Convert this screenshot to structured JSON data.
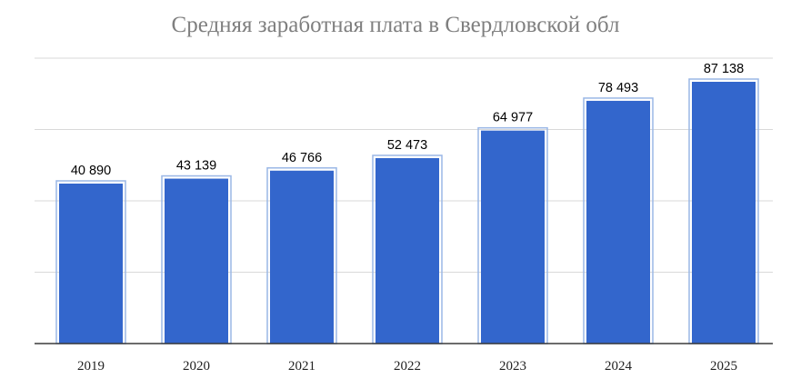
{
  "chart_data": {
    "type": "bar",
    "title": "Средняя заработная плата в Свердловской обл",
    "categories": [
      "2019",
      "2020",
      "2021",
      "2022",
      "2023",
      "2024",
      "2025"
    ],
    "values": [
      40890,
      43139,
      46766,
      52473,
      64977,
      78493,
      87138
    ],
    "value_labels": [
      "40 890",
      "43 139",
      "46 766",
      "52 473",
      "64 977",
      "78 493",
      "87 138"
    ],
    "xlabel": "",
    "ylabel": "",
    "grid": true,
    "legend": "none",
    "colors": {
      "bar": "#3366cc",
      "bar_outline": "#9ab7e6",
      "grid": "#d9d9d9",
      "title": "#7f7f7f"
    }
  }
}
